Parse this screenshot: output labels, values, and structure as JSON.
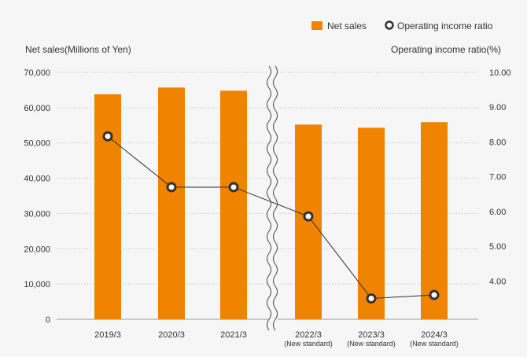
{
  "chart_data": {
    "type": "bar",
    "colors": {
      "bar": "#f08300",
      "line": "#333333",
      "marker_fill": "#ffffff",
      "grid": "#cccccc",
      "background": "#f6f6f6"
    },
    "categories": [
      "2019/3",
      "2020/3",
      "2021/3",
      "2022/3",
      "2023/3",
      "2024/3"
    ],
    "category_notes": [
      "",
      "",
      "",
      "(New standard)",
      "(New standard)",
      "(New standard)"
    ],
    "axis_break_after_index": 2,
    "series": [
      {
        "name": "Net sales",
        "kind": "bar",
        "axis": "left",
        "values": [
          63800,
          65700,
          64800,
          55200,
          54300,
          55900
        ]
      },
      {
        "name": "Operating income ratio",
        "kind": "line",
        "axis": "right",
        "values": [
          8.16,
          6.7,
          6.7,
          5.86,
          3.5,
          3.6
        ]
      }
    ],
    "ylabel_left": "Net sales(Millions of Yen)",
    "ylabel_right": "Operating income ratio(%)",
    "ylim_left": [
      0,
      70000
    ],
    "ylim_right": [
      2.9,
      10.0
    ],
    "yticks_left": [
      "0",
      "10,000",
      "20,000",
      "30,000",
      "40,000",
      "50,000",
      "60,000",
      "70,000"
    ],
    "yticks_right": [
      "4.00",
      "5.00",
      "6.00",
      "7.00",
      "8.00",
      "9.00",
      "10.00"
    ],
    "grid": "horizontal-dotted",
    "legend_position": "top-right"
  }
}
